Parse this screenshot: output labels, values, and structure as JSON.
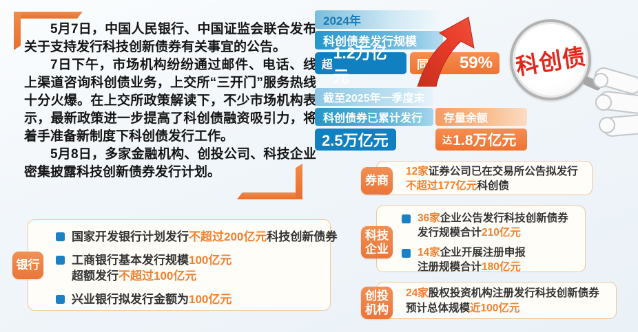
{
  "colors": {
    "primary_blue": "#1180c0",
    "bar_blue_gradient": "#2496cc",
    "accent_orange": "#ee8044",
    "highlight_orange": "#f0812f",
    "arrow_red": "#e23a2e",
    "stamp_red": "#e4271b",
    "background": "#eef3f8"
  },
  "article": {
    "paragraphs": [
      "5月7日，中国人民银行、中国证监会联合发布关于支持发行科技创新债券有关事宜的公告。",
      "7日下午，市场机构纷纷通过邮件、电话、线上渠道咨询科创债业务，上交所“三开门”服务热线十分火爆。在上交所政策解读下，不少市场机构表示，最新政策进一步提高了科创债融资吸引力，将着手准备新制度下科创债发行工作。",
      "5月8日，多家金融机构、创投公司、科技企业密集披露科技创新债券发行计划。"
    ]
  },
  "stamp": {
    "label": "科创债"
  },
  "stats_2024": {
    "year_label": "2024年",
    "metric_label": "科创债券发行规模",
    "value_prefix": "超",
    "value_number": "1.2万亿元",
    "yoy_label": "同比",
    "yoy_value": "59%"
  },
  "stats_2025q1": {
    "period_label": "截至2025年一季度末",
    "issued_label": "科创债券已累计发行",
    "issued_value": "2.5万亿元",
    "balance_label": "存量余额",
    "balance_prefix": "达",
    "balance_number": "1.8万亿元"
  },
  "sections": {
    "brokers": {
      "badge": "券商",
      "lines": [
        [
          {
            "t": "12家",
            "hl": true
          },
          {
            "t": "证券公司已在交易所公告拟发行",
            "hl": false
          }
        ],
        [
          {
            "t": "不超过177亿元",
            "hl": true
          },
          {
            "t": "科创债",
            "hl": false
          }
        ]
      ]
    },
    "tech": {
      "badge_line1": "科技",
      "badge_line2": "企业",
      "items": [
        {
          "lines": [
            [
              {
                "t": "36家",
                "hl": true
              },
              {
                "t": "企业公告发行科技创新债券",
                "hl": false
              }
            ],
            [
              {
                "t": "发行规模合计",
                "hl": false
              },
              {
                "t": "210亿元",
                "hl": true
              }
            ]
          ]
        },
        {
          "lines": [
            [
              {
                "t": "14家",
                "hl": true
              },
              {
                "t": "企业开展注册申报",
                "hl": false
              }
            ],
            [
              {
                "t": "注册规模合计",
                "hl": false
              },
              {
                "t": "180亿元",
                "hl": true
              }
            ]
          ]
        }
      ]
    },
    "vc": {
      "badge_line1": "创投",
      "badge_line2": "机构",
      "lines": [
        [
          {
            "t": "24家",
            "hl": true
          },
          {
            "t": "股权投资机构注册发行科技创新债券",
            "hl": false
          }
        ],
        [
          {
            "t": "预计总体规模",
            "hl": false
          },
          {
            "t": "近100亿元",
            "hl": true
          }
        ]
      ]
    },
    "banks": {
      "badge": "银行",
      "items": [
        {
          "lines": [
            [
              {
                "t": "国家开发银行计划发行",
                "hl": false
              },
              {
                "t": "不超过200亿元",
                "hl": true
              },
              {
                "t": "科技创新债券",
                "hl": false
              }
            ]
          ]
        },
        {
          "lines": [
            [
              {
                "t": "工商银行基本发行规模",
                "hl": false
              },
              {
                "t": "100亿元",
                "hl": true
              }
            ],
            [
              {
                "t": "超额发行",
                "hl": false
              },
              {
                "t": "不超过100亿元",
                "hl": true
              }
            ]
          ]
        },
        {
          "lines": [
            [
              {
                "t": "兴业银行拟发行金额为",
                "hl": false
              },
              {
                "t": "100亿元",
                "hl": true
              }
            ]
          ]
        }
      ]
    }
  }
}
